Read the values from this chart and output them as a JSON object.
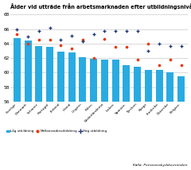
{
  "title": "Ålder vid utträde från arbetsmarknaden efter utbildningsnivå år 2020",
  "countries": [
    "Sverige",
    "Danmark",
    "Schweiz",
    "Portugal",
    "Finland",
    "Irland",
    "Ungern",
    "Polen",
    "Nederländerna",
    "Italien",
    "Spanien",
    "Tjecken",
    "Norge",
    "Frankrike",
    "Österrike",
    "Belgien"
  ],
  "low_edu": [
    64.8,
    64.4,
    63.7,
    63.6,
    62.9,
    62.8,
    62.1,
    61.9,
    61.8,
    61.8,
    61.0,
    60.8,
    60.4,
    60.4,
    60.1,
    59.5
  ],
  "mid_edu": [
    65.3,
    64.0,
    64.5,
    64.5,
    63.8,
    63.3,
    64.5,
    62.0,
    64.6,
    63.5,
    63.5,
    61.8,
    64.0,
    61.0,
    61.8,
    61.0
  ],
  "high_edu": [
    66.0,
    65.0,
    65.7,
    66.2,
    64.5,
    65.1,
    64.3,
    65.3,
    65.8,
    65.8,
    65.8,
    65.7,
    63.0,
    64.0,
    63.7,
    63.7
  ],
  "bar_color": "#29ABE2",
  "mid_color": "#E8380D",
  "high_color": "#1F3875",
  "ylabel_ticks": [
    56,
    58,
    60,
    62,
    64,
    66,
    68
  ],
  "ylim": [
    56,
    68.5
  ],
  "ybase": 56,
  "source": "Källa: Pensionsskyddscentralen",
  "legend_low": "Låg utbildning",
  "legend_mid": "Mellanstadieutbildning",
  "legend_high": "Hög utbildning",
  "title_fontsize": 4.8,
  "tick_fontsize": 4.2,
  "xtick_fontsize": 3.2,
  "bar_width": 0.65
}
